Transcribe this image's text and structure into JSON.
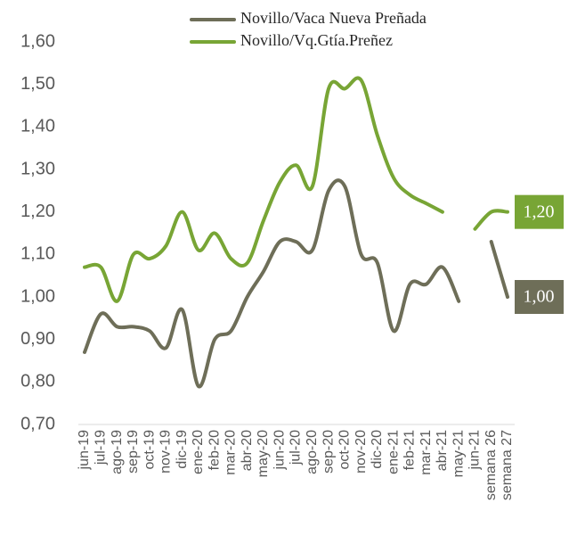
{
  "chart_data": {
    "type": "line",
    "categories": [
      "jun-19",
      "jul-19",
      "ago-19",
      "sep-19",
      "oct-19",
      "nov-19",
      "dic-19",
      "ene-20",
      "feb-20",
      "mar-20",
      "abr-20",
      "may-20",
      "jun-20",
      "jul-20",
      "ago-20",
      "sep-20",
      "oct-20",
      "nov-20",
      "dic-20",
      "ene-21",
      "feb-21",
      "mar-21",
      "abr-21",
      "may-21",
      "jun-21",
      "semana 26",
      "semana 27"
    ],
    "series": [
      {
        "name": "Novillo/Vaca Nueva Preñada",
        "color": "#6e6e58",
        "values": [
          0.87,
          0.96,
          0.93,
          0.93,
          0.92,
          0.88,
          0.97,
          0.79,
          0.9,
          0.92,
          1.0,
          1.06,
          1.13,
          1.13,
          1.11,
          1.25,
          1.26,
          1.1,
          1.08,
          0.92,
          1.03,
          1.03,
          1.07,
          0.99,
          null,
          1.13,
          1.0
        ],
        "end_label": "1,00"
      },
      {
        "name": "Novillo/Vq.Gtía.Preñez",
        "color": "#78a535",
        "values": [
          1.07,
          1.07,
          0.99,
          1.1,
          1.09,
          1.12,
          1.2,
          1.11,
          1.15,
          1.09,
          1.08,
          1.18,
          1.27,
          1.31,
          1.26,
          1.49,
          1.49,
          1.51,
          1.38,
          1.28,
          1.24,
          1.22,
          1.2,
          null,
          1.16,
          1.2,
          1.2
        ],
        "end_label": "1,20"
      }
    ],
    "ylim": [
      0.7,
      1.6
    ],
    "yticks": [
      {
        "value": 0.7,
        "label": "0,70"
      },
      {
        "value": 0.8,
        "label": "0,80"
      },
      {
        "value": 0.9,
        "label": "0,90"
      },
      {
        "value": 1.0,
        "label": "1,00"
      },
      {
        "value": 1.1,
        "label": "1,10"
      },
      {
        "value": 1.2,
        "label": "1,20"
      },
      {
        "value": 1.3,
        "label": "1,30"
      },
      {
        "value": 1.4,
        "label": "1,40"
      },
      {
        "value": 1.5,
        "label": "1,50"
      },
      {
        "value": 1.6,
        "label": "1,60"
      }
    ],
    "grid": false
  }
}
